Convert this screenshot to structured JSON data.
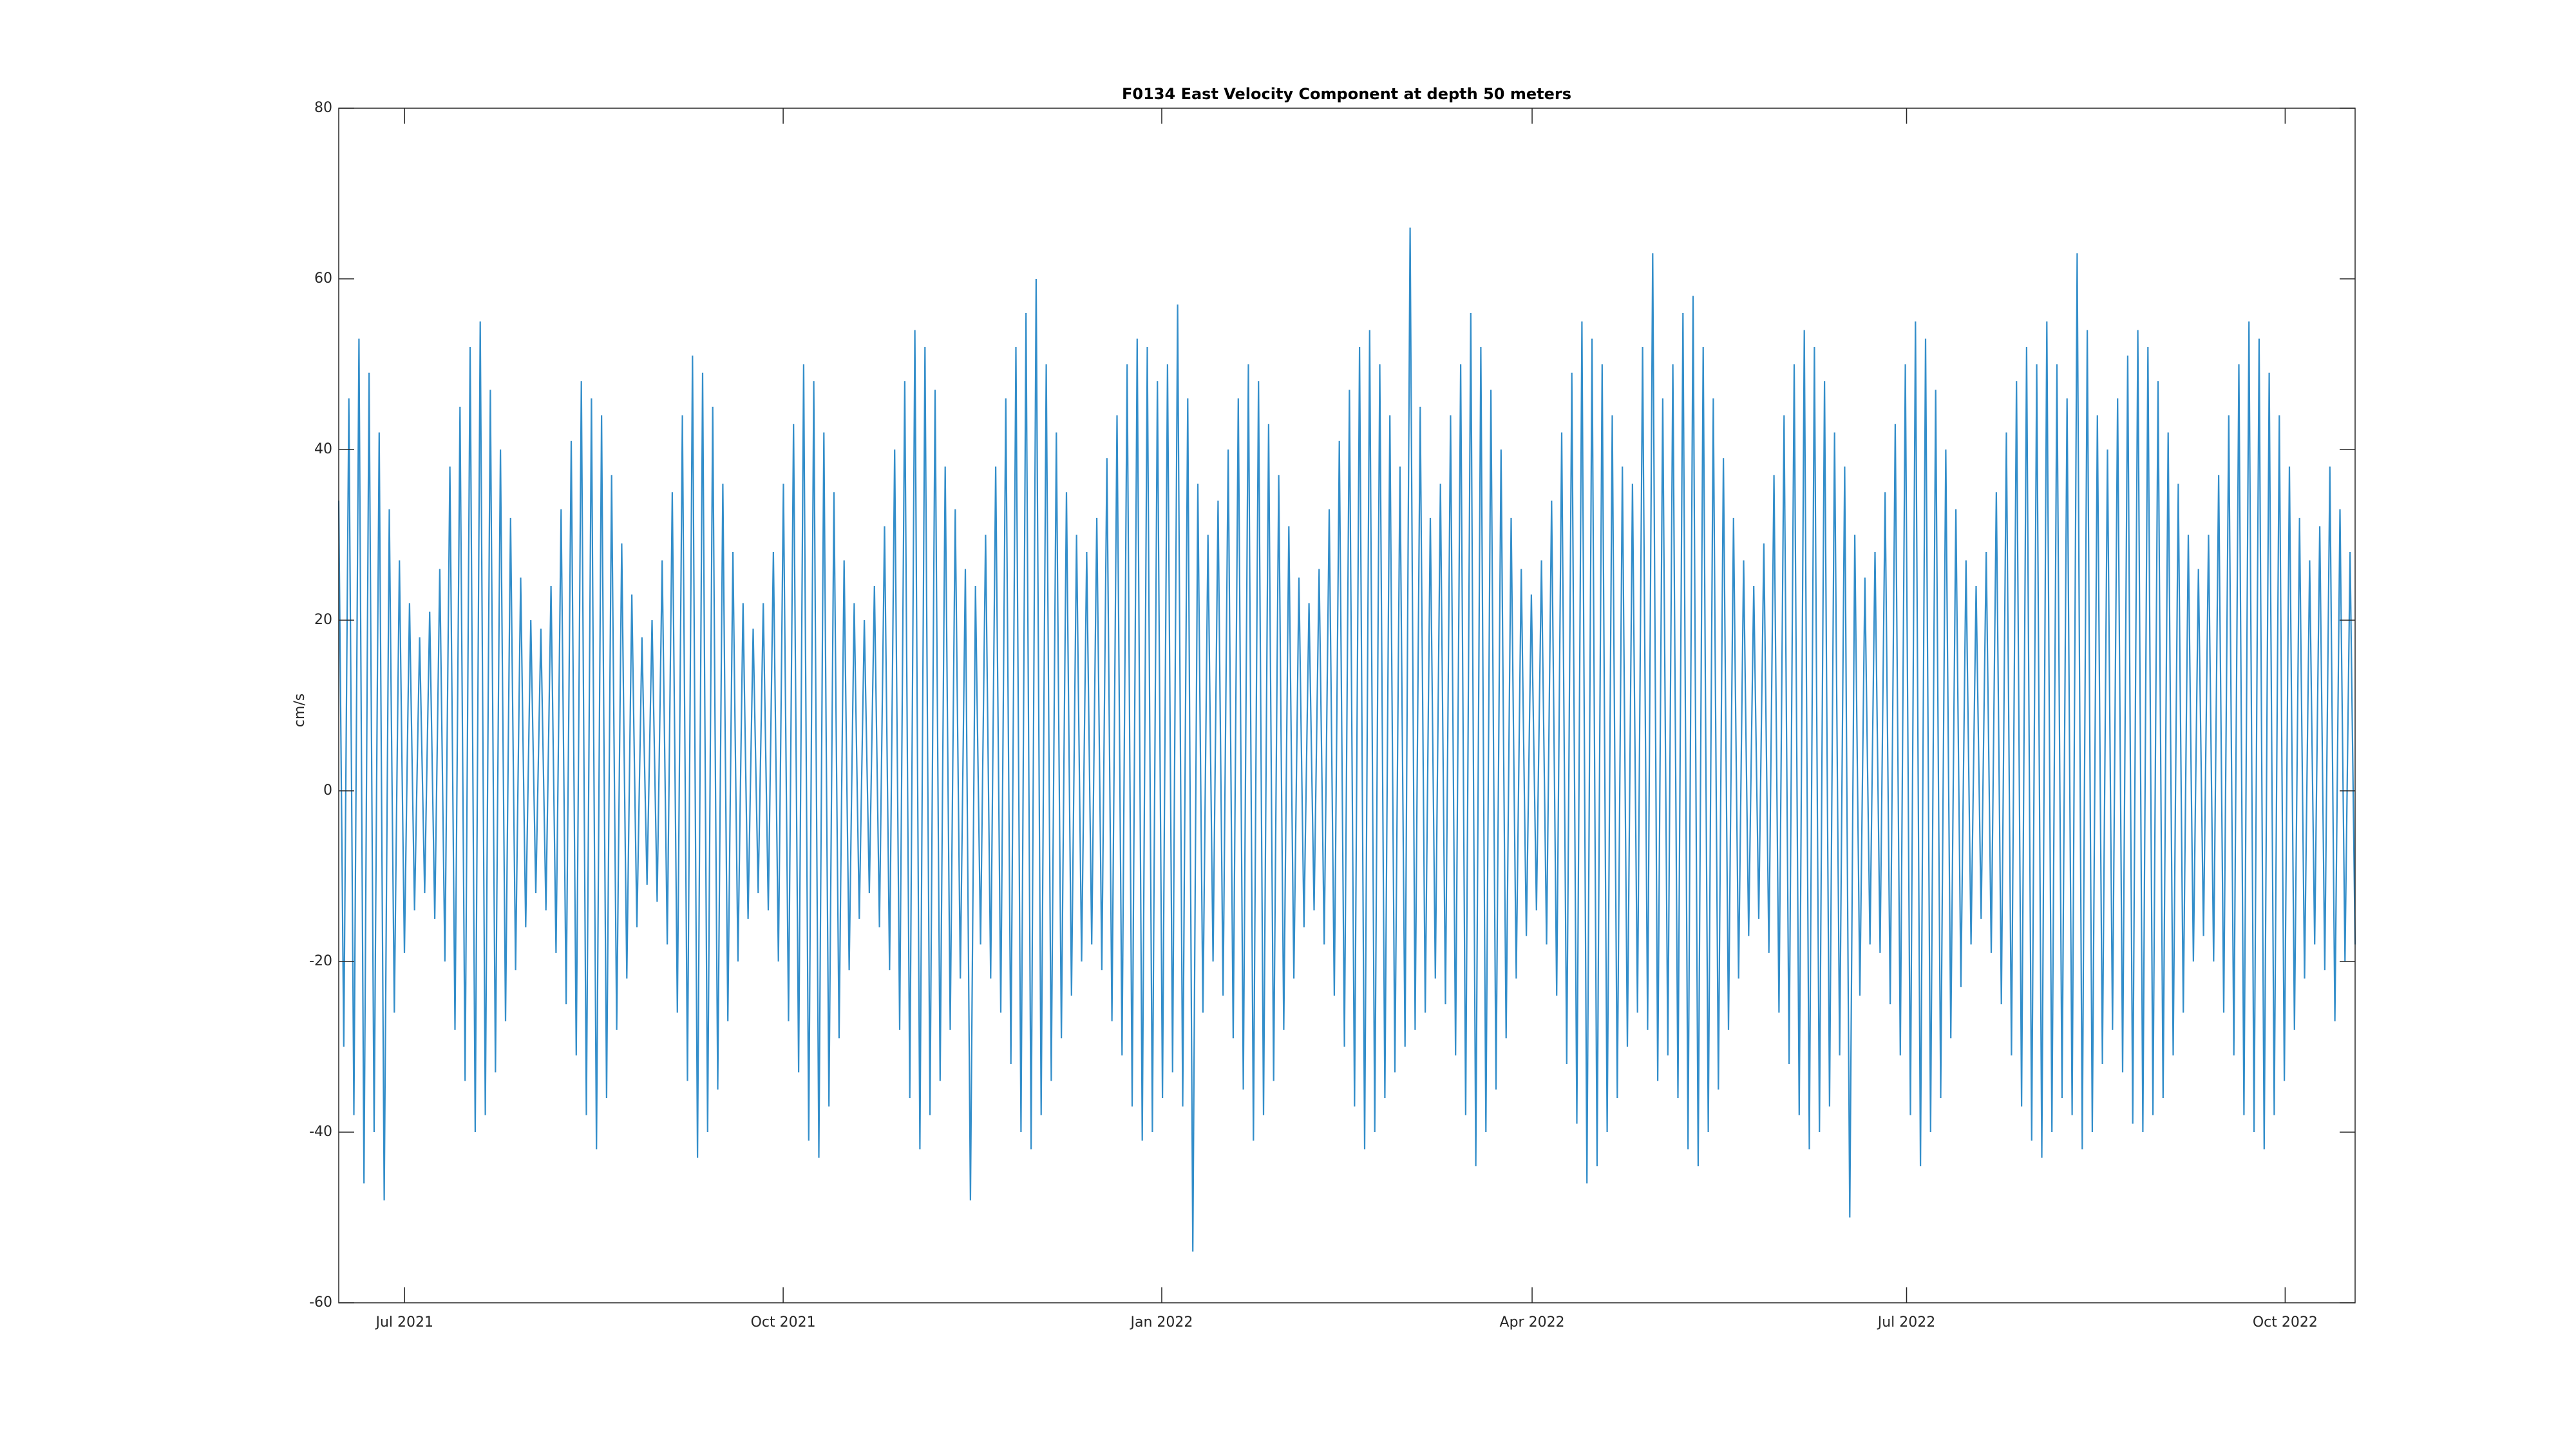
{
  "chart_data": {
    "type": "line",
    "title": "F0134 East Velocity Component at depth 50 meters",
    "ylabel": "cm/s",
    "color": "#0072bd",
    "xlim": [
      "2021-06-15",
      "2022-10-18"
    ],
    "xticks": [
      {
        "value": "2021-07-01",
        "label": "Jul 2021"
      },
      {
        "value": "2021-10-01",
        "label": "Oct 2021"
      },
      {
        "value": "2022-01-01",
        "label": "Jan 2022"
      },
      {
        "value": "2022-04-01",
        "label": "Apr 2022"
      },
      {
        "value": "2022-07-01",
        "label": "Jul 2022"
      },
      {
        "value": "2022-10-01",
        "label": "Oct 2022"
      }
    ],
    "ylim": [
      -60,
      80
    ],
    "yticks": [
      -60,
      -40,
      -20,
      0,
      20,
      40,
      60,
      80
    ],
    "values": [
      34,
      -30,
      46,
      -38,
      53,
      -46,
      49,
      -40,
      42,
      -48,
      33,
      -26,
      27,
      -19,
      22,
      -14,
      18,
      -12,
      21,
      -15,
      26,
      -20,
      38,
      -28,
      45,
      -34,
      52,
      -40,
      55,
      -38,
      47,
      -33,
      40,
      -27,
      32,
      -21,
      25,
      -16,
      20,
      -12,
      19,
      -14,
      24,
      -19,
      33,
      -25,
      41,
      -31,
      48,
      -38,
      46,
      -42,
      44,
      -36,
      37,
      -28,
      29,
      -22,
      23,
      -16,
      18,
      -11,
      20,
      -13,
      27,
      -18,
      35,
      -26,
      44,
      -34,
      51,
      -43,
      49,
      -40,
      45,
      -35,
      36,
      -27,
      28,
      -20,
      22,
      -15,
      19,
      -12,
      22,
      -14,
      28,
      -20,
      36,
      -27,
      43,
      -33,
      50,
      -41,
      48,
      -43,
      42,
      -37,
      35,
      -29,
      27,
      -21,
      22,
      -15,
      20,
      -12,
      24,
      -16,
      31,
      -21,
      40,
      -28,
      48,
      -36,
      54,
      -42,
      52,
      -38,
      47,
      -34,
      38,
      -28,
      33,
      -22,
      26,
      -48,
      24,
      -18,
      30,
      -22,
      38,
      -26,
      46,
      -32,
      52,
      -40,
      56,
      -42,
      60,
      -38,
      50,
      -34,
      42,
      -29,
      35,
      -24,
      30,
      -20,
      28,
      -18,
      32,
      -21,
      39,
      -27,
      44,
      -31,
      50,
      -37,
      53,
      -41,
      52,
      -40,
      48,
      -36,
      50,
      -33,
      57,
      -37,
      46,
      -54,
      36,
      -26,
      30,
      -20,
      34,
      -24,
      40,
      -29,
      46,
      -35,
      50,
      -41,
      48,
      -38,
      43,
      -34,
      37,
      -28,
      31,
      -22,
      25,
      -16,
      22,
      -14,
      26,
      -18,
      33,
      -24,
      41,
      -30,
      47,
      -37,
      52,
      -42,
      54,
      -40,
      50,
      -36,
      44,
      -33,
      38,
      -30,
      66,
      -28,
      45,
      -26,
      32,
      -22,
      36,
      -25,
      44,
      -31,
      50,
      -38,
      56,
      -44,
      52,
      -40,
      47,
      -35,
      40,
      -29,
      32,
      -22,
      26,
      -17,
      23,
      -14,
      27,
      -18,
      34,
      -24,
      42,
      -32,
      49,
      -39,
      55,
      -46,
      53,
      -44,
      50,
      -40,
      44,
      -36,
      38,
      -30,
      36,
      -26,
      52,
      -28,
      63,
      -34,
      46,
      -31,
      50,
      -36,
      56,
      -42,
      58,
      -44,
      52,
      -40,
      46,
      -35,
      39,
      -28,
      32,
      -22,
      27,
      -17,
      24,
      -15,
      29,
      -19,
      37,
      -26,
      44,
      -32,
      50,
      -38,
      54,
      -42,
      52,
      -40,
      48,
      -37,
      42,
      -31,
      38,
      -50,
      30,
      -24,
      25,
      -18,
      28,
      -19,
      35,
      -25,
      43,
      -31,
      50,
      -38,
      55,
      -44,
      53,
      -40,
      47,
      -36,
      40,
      -29,
      33,
      -23,
      27,
      -18,
      24,
      -15,
      28,
      -19,
      35,
      -25,
      42,
      -31,
      48,
      -37,
      52,
      -41,
      50,
      -43,
      55,
      -40,
      50,
      -36,
      46,
      -38,
      63,
      -42,
      54,
      -40,
      44,
      -32,
      40,
      -28,
      46,
      -33,
      51,
      -39,
      54,
      -40,
      52,
      -38,
      48,
      -36,
      42,
      -31,
      36,
      -26,
      30,
      -20,
      26,
      -17,
      30,
      -20,
      37,
      -26,
      44,
      -31,
      50,
      -38,
      55,
      -40,
      53,
      -42,
      49,
      -38,
      44,
      -34,
      38,
      -28,
      32,
      -22,
      27,
      -18,
      31,
      -21,
      38,
      -27,
      33,
      -20,
      28,
      -18
    ]
  }
}
